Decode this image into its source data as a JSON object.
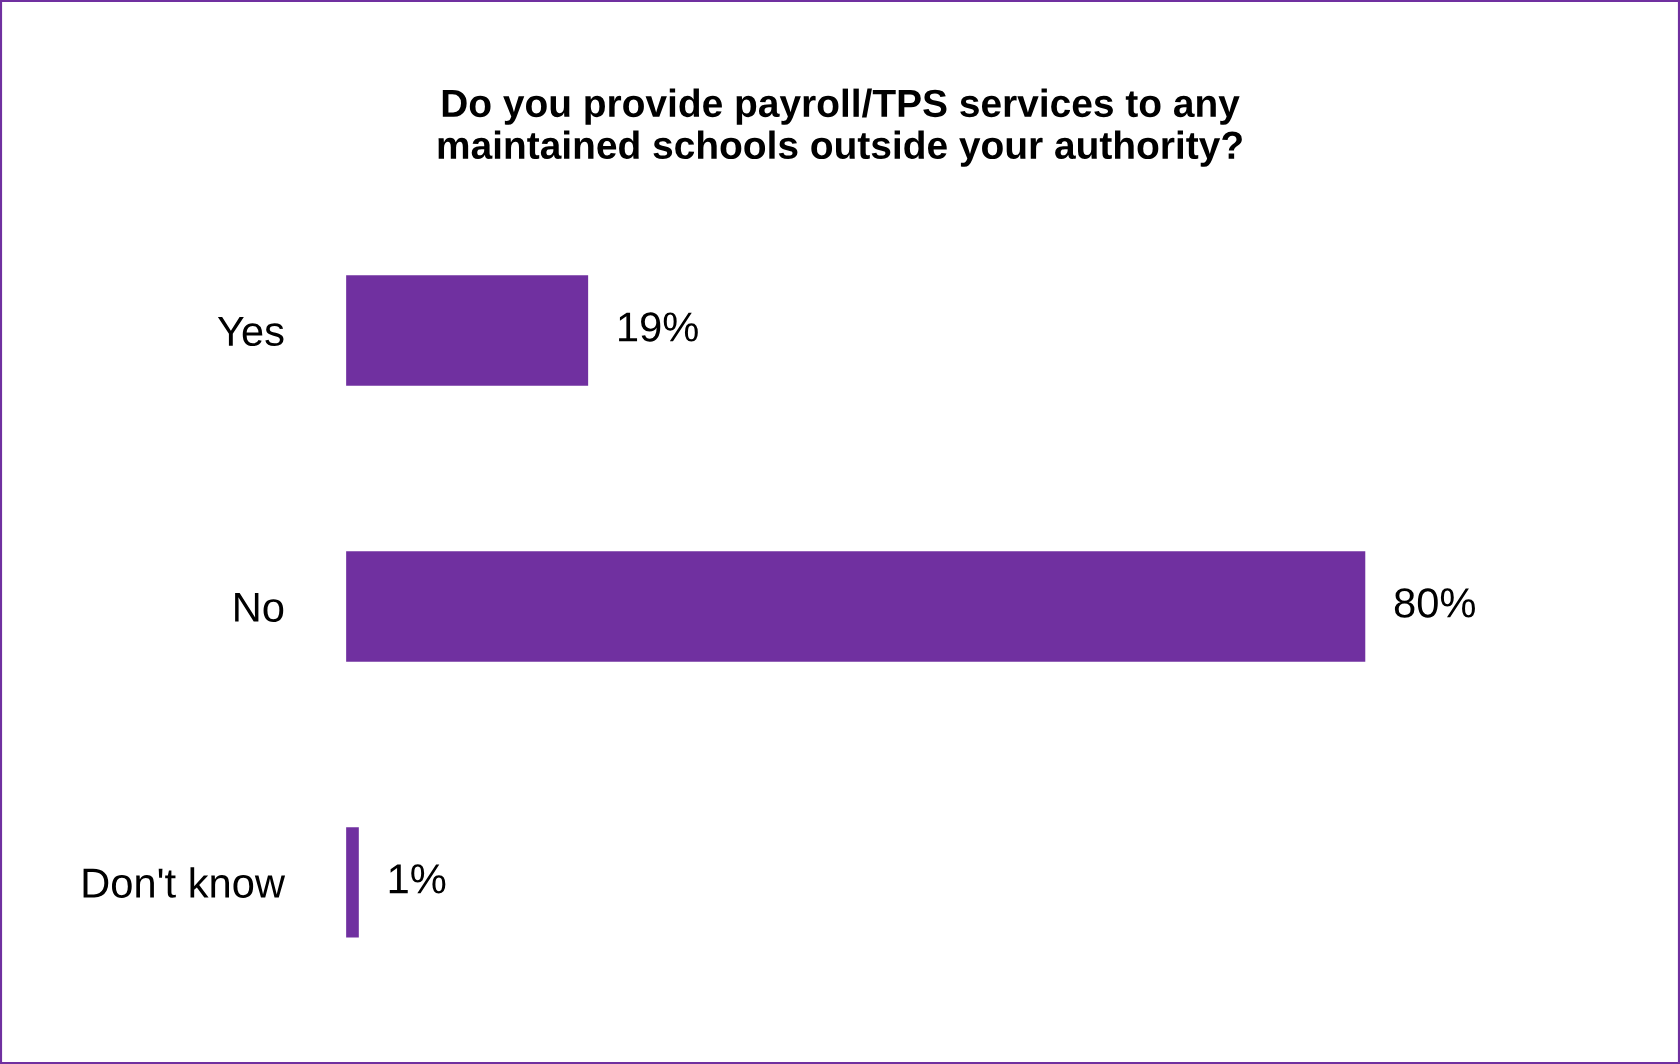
{
  "chart_data": {
    "type": "bar",
    "orientation": "horizontal",
    "title": "Do you provide payroll/TPS services to any\nmaintained schools outside your authority?",
    "categories": [
      "Yes",
      "No",
      "Don't know"
    ],
    "values": [
      19,
      80,
      1
    ],
    "value_labels": [
      "19%",
      "80%",
      "1%"
    ],
    "color": "#7030a0",
    "grid": false,
    "legend": false,
    "tick_labels": "y"
  }
}
